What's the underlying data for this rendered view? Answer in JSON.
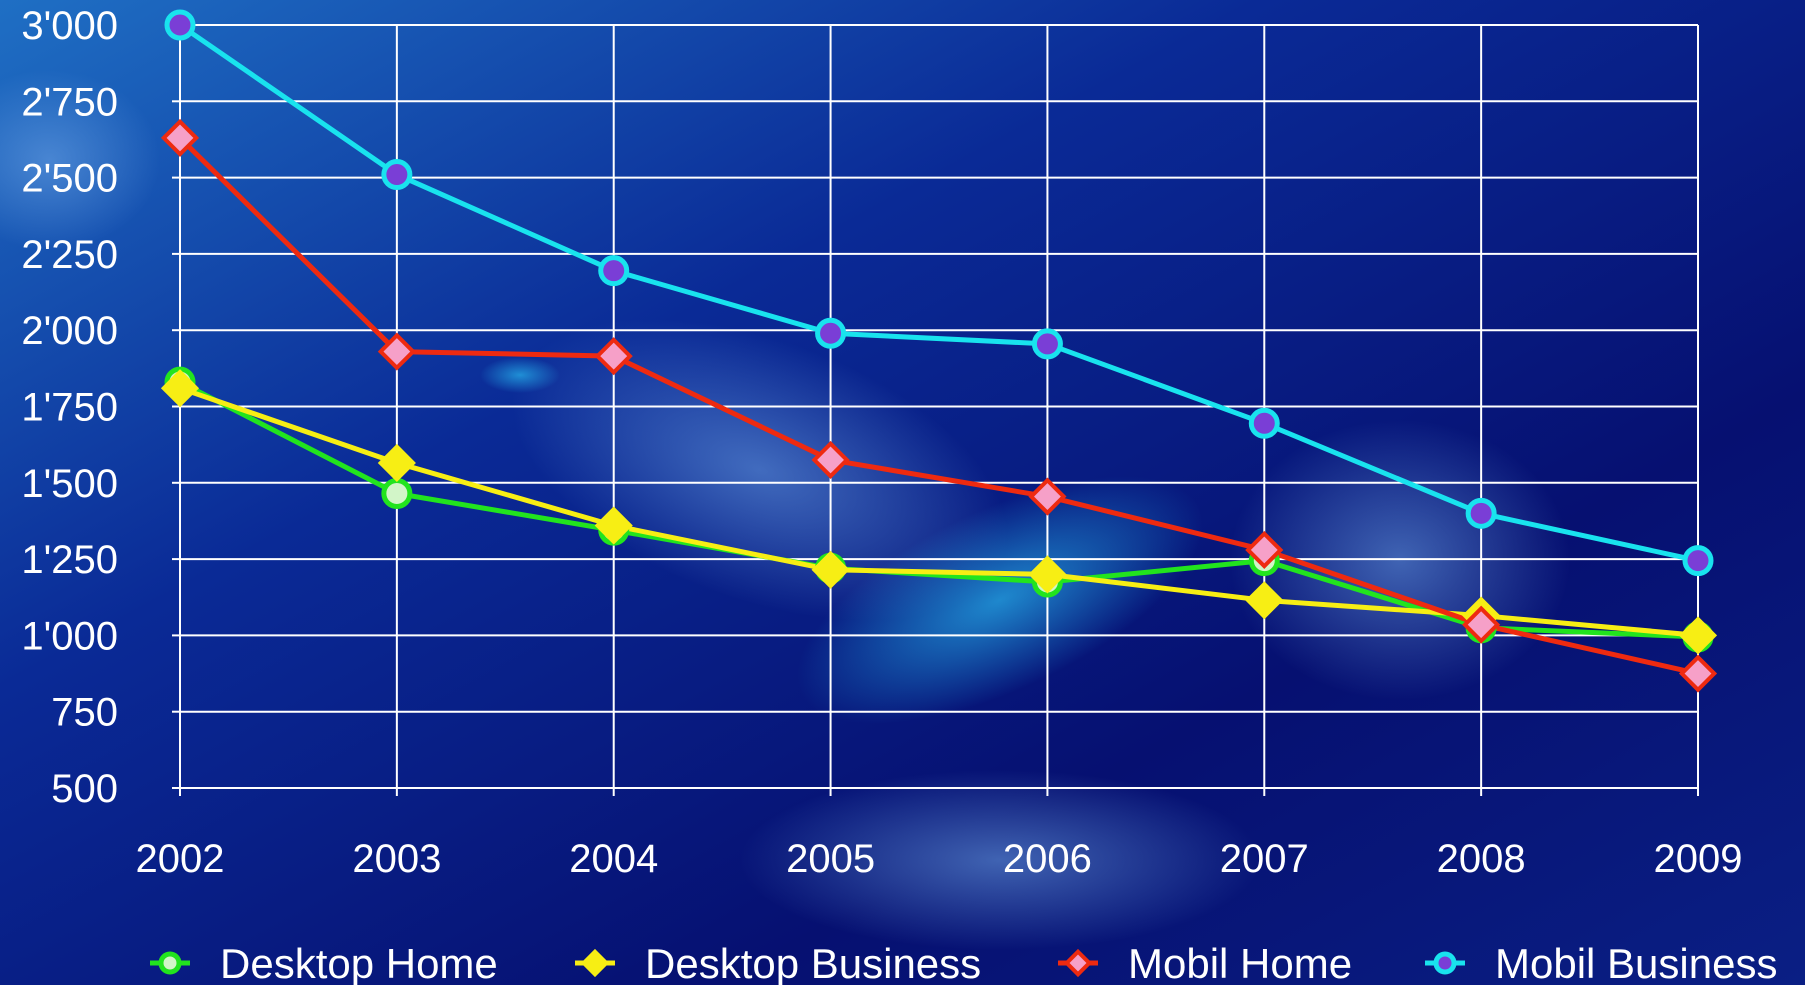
{
  "chart_data": {
    "type": "line",
    "title": "",
    "xlabel": "",
    "ylabel": "",
    "x": [
      "2002",
      "2003",
      "2004",
      "2005",
      "2006",
      "2007",
      "2008",
      "2009"
    ],
    "ylim": [
      500,
      3000
    ],
    "yticks": [
      500,
      750,
      1000,
      1250,
      1500,
      1750,
      2000,
      2250,
      2500,
      2750,
      3000
    ],
    "ytick_labels": [
      "500",
      "750",
      "1'000",
      "1'250",
      "1'500",
      "1'750",
      "2'000",
      "2'250",
      "2'500",
      "2'750",
      "3'000"
    ],
    "grid": true,
    "legend_position": "bottom",
    "series": [
      {
        "name": "Desktop Home",
        "values": [
          1830,
          1465,
          1345,
          1220,
          1175,
          1245,
          1025,
          995
        ],
        "line_color": "#22e41e",
        "marker": "circle",
        "marker_fill": "#d2f5c8"
      },
      {
        "name": "Desktop Business",
        "values": [
          1810,
          1565,
          1360,
          1215,
          1200,
          1115,
          1065,
          1000
        ],
        "line_color": "#f7ee14",
        "marker": "diamond",
        "marker_fill": "#f7ee14"
      },
      {
        "name": "Mobil Home",
        "values": [
          2630,
          1930,
          1915,
          1575,
          1455,
          1280,
          1035,
          875
        ],
        "line_color": "#ee2a10",
        "marker": "diamond",
        "marker_fill": "#f6a0c8"
      },
      {
        "name": "Mobil Business",
        "values": [
          3000,
          2510,
          2195,
          1990,
          1955,
          1695,
          1400,
          1245
        ],
        "line_color": "#19e3ee",
        "marker": "circle",
        "marker_fill": "#7a3ed6"
      }
    ]
  }
}
